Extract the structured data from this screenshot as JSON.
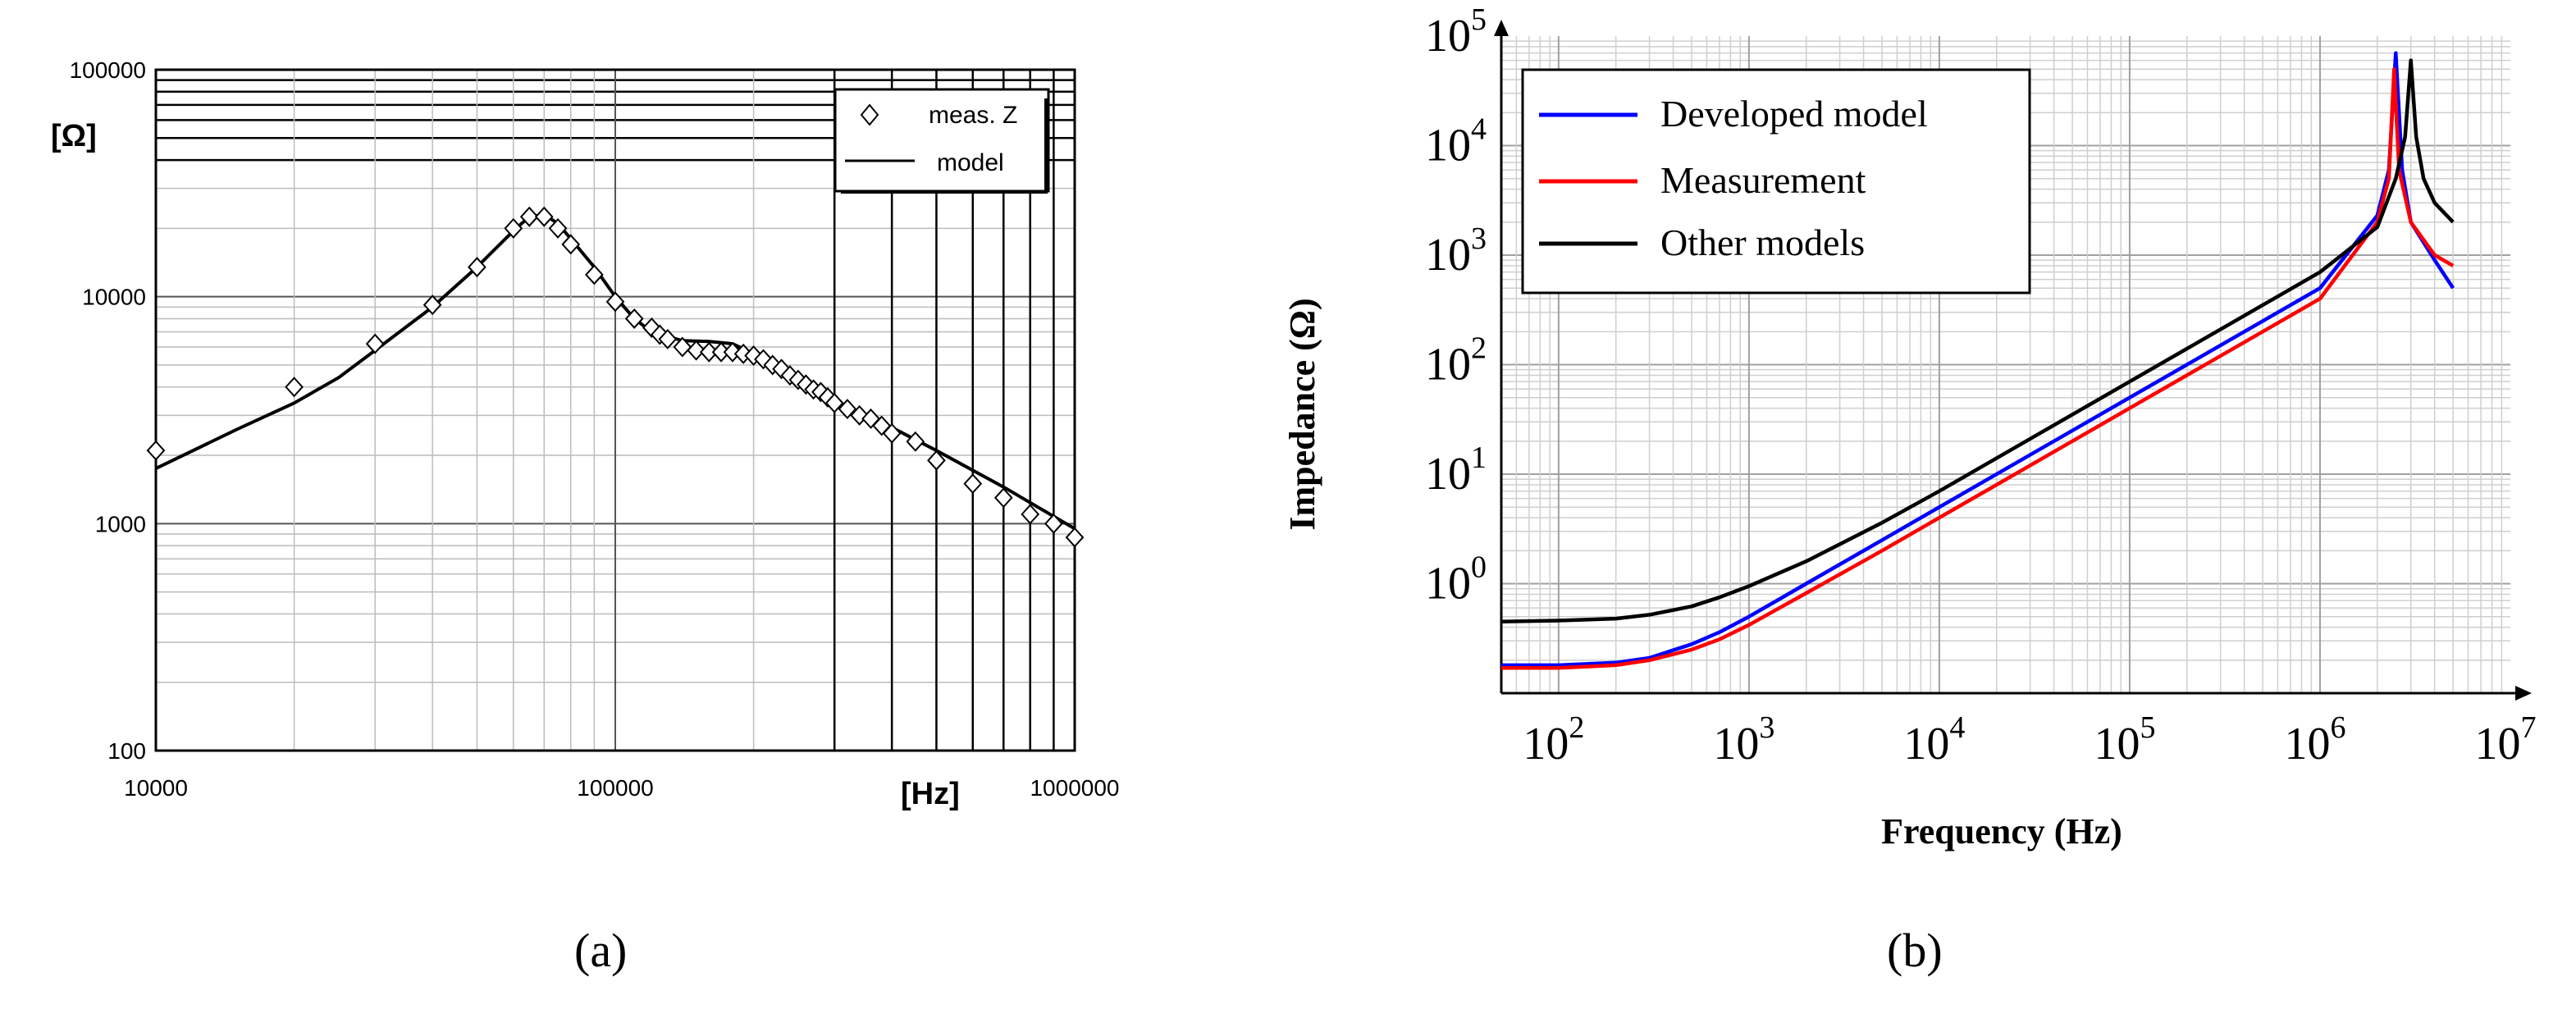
{
  "chart_data": [
    {
      "type": "line",
      "panel_label": "(a)",
      "x_scale": "log",
      "y_scale": "log",
      "xlim": [
        10000,
        1000000
      ],
      "ylim": [
        100,
        100000
      ],
      "x_ticks": [
        "10000",
        "100000",
        "1000000"
      ],
      "y_ticks": [
        "100000",
        "10000",
        "1000",
        "100"
      ],
      "xlabel": "[Hz]",
      "ylabel": "[Ω]",
      "grid": true,
      "legend_position": "top-right",
      "legend": [
        "meas. Z",
        "model"
      ],
      "series": [
        {
          "name": "meas. Z",
          "style": "markers",
          "marker": "diamond",
          "points": [
            [
              10000,
              2100
            ],
            [
              20000,
              4000
            ],
            [
              30000,
              6200
            ],
            [
              40000,
              9200
            ],
            [
              50000,
              13500
            ],
            [
              60000,
              20000
            ],
            [
              65000,
              22500
            ],
            [
              70000,
              22500
            ],
            [
              75000,
              20000
            ],
            [
              80000,
              17000
            ],
            [
              90000,
              12500
            ],
            [
              100000,
              9500
            ],
            [
              110000,
              8000
            ],
            [
              120000,
              7300
            ],
            [
              125000,
              6800
            ],
            [
              130000,
              6500
            ],
            [
              140000,
              6000
            ],
            [
              150000,
              5800
            ],
            [
              160000,
              5700
            ],
            [
              170000,
              5700
            ],
            [
              180000,
              5700
            ],
            [
              190000,
              5600
            ],
            [
              200000,
              5500
            ],
            [
              210000,
              5300
            ],
            [
              220000,
              5000
            ],
            [
              230000,
              4800
            ],
            [
              240000,
              4500
            ],
            [
              250000,
              4300
            ],
            [
              260000,
              4100
            ],
            [
              270000,
              3900
            ],
            [
              280000,
              3800
            ],
            [
              290000,
              3600
            ],
            [
              300000,
              3400
            ],
            [
              320000,
              3200
            ],
            [
              340000,
              3000
            ],
            [
              360000,
              2900
            ],
            [
              380000,
              2700
            ],
            [
              400000,
              2500
            ],
            [
              450000,
              2300
            ],
            [
              500000,
              1900
            ],
            [
              600000,
              1500
            ],
            [
              700000,
              1300
            ],
            [
              800000,
              1100
            ],
            [
              900000,
              1000
            ],
            [
              1000000,
              870
            ]
          ]
        },
        {
          "name": "model",
          "style": "line",
          "color": "#000000",
          "points": [
            [
              10000,
              1750
            ],
            [
              15000,
              2600
            ],
            [
              20000,
              3400
            ],
            [
              25000,
              4400
            ],
            [
              30000,
              5800
            ],
            [
              40000,
              9000
            ],
            [
              50000,
              13500
            ],
            [
              60000,
              19500
            ],
            [
              65000,
              22500
            ],
            [
              70000,
              23000
            ],
            [
              75000,
              21000
            ],
            [
              80000,
              18000
            ],
            [
              90000,
              13500
            ],
            [
              100000,
              10000
            ],
            [
              110000,
              8000
            ],
            [
              120000,
              7000
            ],
            [
              140000,
              6400
            ],
            [
              160000,
              6350
            ],
            [
              180000,
              6200
            ],
            [
              200000,
              5600
            ],
            [
              250000,
              4400
            ],
            [
              300000,
              3500
            ],
            [
              400000,
              2650
            ],
            [
              500000,
              2100
            ],
            [
              700000,
              1450
            ],
            [
              1000000,
              950
            ]
          ]
        }
      ]
    },
    {
      "type": "line",
      "panel_label": "(b)",
      "x_scale": "log",
      "y_scale": "log",
      "xlim": [
        50,
        10000000
      ],
      "ylim": [
        0.1,
        100000
      ],
      "x_ticks": [
        {
          "base": "10",
          "exp": "2"
        },
        {
          "base": "10",
          "exp": "3"
        },
        {
          "base": "10",
          "exp": "4"
        },
        {
          "base": "10",
          "exp": "5"
        },
        {
          "base": "10",
          "exp": "6"
        },
        {
          "base": "10",
          "exp": "7"
        }
      ],
      "y_ticks": [
        {
          "base": "10",
          "exp": "0"
        },
        {
          "base": "10",
          "exp": "1"
        },
        {
          "base": "10",
          "exp": "2"
        },
        {
          "base": "10",
          "exp": "3"
        },
        {
          "base": "10",
          "exp": "4"
        },
        {
          "base": "10",
          "exp": "5"
        }
      ],
      "xlabel": "Frequency (Hz)",
      "ylabel": "Impedance (Ω)",
      "grid": true,
      "legend_position": "top-left",
      "series": [
        {
          "name": "Developed model",
          "color": "#0000ff",
          "points": [
            [
              50,
              0.18
            ],
            [
              100,
              0.18
            ],
            [
              200,
              0.19
            ],
            [
              300,
              0.21
            ],
            [
              500,
              0.28
            ],
            [
              700,
              0.36
            ],
            [
              1000,
              0.5
            ],
            [
              2000,
              1.0
            ],
            [
              5000,
              2.5
            ],
            [
              10000,
              5.0
            ],
            [
              100000,
              50
            ],
            [
              1000000,
              500
            ],
            [
              2000000,
              2300
            ],
            [
              2300000,
              6000
            ],
            [
              2500000,
              70000
            ],
            [
              2700000,
              6000
            ],
            [
              3000000,
              2000
            ],
            [
              4000000,
              900
            ],
            [
              5000000,
              500
            ]
          ]
        },
        {
          "name": "Measurement",
          "color": "#ff0000",
          "points": [
            [
              50,
              0.17
            ],
            [
              100,
              0.17
            ],
            [
              200,
              0.18
            ],
            [
              300,
              0.2
            ],
            [
              500,
              0.25
            ],
            [
              700,
              0.31
            ],
            [
              1000,
              0.42
            ],
            [
              2000,
              0.82
            ],
            [
              5000,
              2.0
            ],
            [
              10000,
              4.0
            ],
            [
              100000,
              40
            ],
            [
              1000000,
              400
            ],
            [
              2000000,
              2000
            ],
            [
              2300000,
              5000
            ],
            [
              2450000,
              50000
            ],
            [
              2600000,
              6000
            ],
            [
              3000000,
              2000
            ],
            [
              4000000,
              1000
            ],
            [
              5000000,
              800
            ]
          ]
        },
        {
          "name": "Other models",
          "color": "#000000",
          "points": [
            [
              50,
              0.45
            ],
            [
              100,
              0.46
            ],
            [
              200,
              0.48
            ],
            [
              300,
              0.52
            ],
            [
              500,
              0.62
            ],
            [
              700,
              0.75
            ],
            [
              1000,
              0.95
            ],
            [
              2000,
              1.6
            ],
            [
              5000,
              3.6
            ],
            [
              10000,
              7.0
            ],
            [
              100000,
              70
            ],
            [
              1000000,
              700
            ],
            [
              2000000,
              1800
            ],
            [
              2500000,
              5000
            ],
            [
              2800000,
              12000
            ],
            [
              3000000,
              60000
            ],
            [
              3200000,
              12000
            ],
            [
              3500000,
              5000
            ],
            [
              4000000,
              3000
            ],
            [
              5000000,
              2000
            ]
          ]
        }
      ]
    }
  ]
}
